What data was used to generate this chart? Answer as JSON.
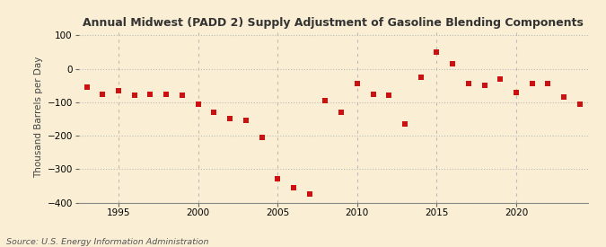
{
  "title": "Annual Midwest (PADD 2) Supply Adjustment of Gasoline Blending Components",
  "ylabel": "Thousand Barrels per Day",
  "source": "Source: U.S. Energy Information Administration",
  "background_color": "#faefd4",
  "marker_color": "#cc1111",
  "grid_color": "#bbbbbb",
  "xlim": [
    1992.5,
    2024.5
  ],
  "ylim": [
    -400,
    110
  ],
  "yticks": [
    -400,
    -300,
    -200,
    -100,
    0,
    100
  ],
  "xticks": [
    1995,
    2000,
    2005,
    2010,
    2015,
    2020
  ],
  "years": [
    1993,
    1994,
    1995,
    1996,
    1997,
    1998,
    1999,
    2000,
    2001,
    2002,
    2003,
    2004,
    2005,
    2006,
    2007,
    2008,
    2009,
    2010,
    2011,
    2012,
    2013,
    2014,
    2015,
    2016,
    2017,
    2018,
    2019,
    2020,
    2021,
    2022,
    2023,
    2024
  ],
  "values": [
    -55,
    -75,
    -65,
    -80,
    -75,
    -75,
    -80,
    -105,
    -130,
    -150,
    -155,
    -205,
    -330,
    -355,
    -375,
    -95,
    -130,
    -45,
    -75,
    -80,
    -165,
    -25,
    50,
    15,
    -45,
    -50,
    -30,
    -70,
    -45,
    -45,
    -85,
    -105
  ]
}
